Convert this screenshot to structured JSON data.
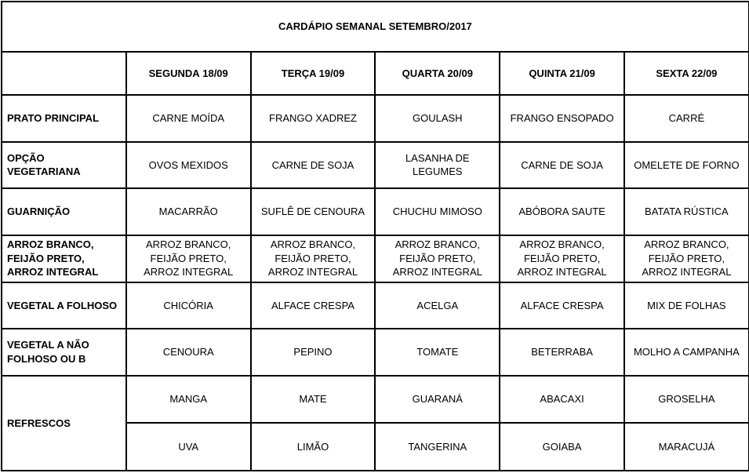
{
  "title": "CARDÁPIO SEMANAL SETEMBRO/2017",
  "table": {
    "day_headers": [
      "SEGUNDA 18/09",
      "TERÇA 19/09",
      "QUARTA 20/09",
      "QUINTA 21/09",
      "SEXTA 22/09"
    ],
    "rows": [
      {
        "label": "PRATO PRINCIPAL",
        "cells": [
          "CARNE MOÍDA",
          "FRANGO XADREZ",
          "GOULASH",
          "FRANGO ENSOPADO",
          "CARRÉ"
        ]
      },
      {
        "label": "OPÇÃO VEGETARIANA",
        "cells": [
          "OVOS MEXIDOS",
          "CARNE DE SOJA",
          "LASANHA DE LEGUMES",
          "CARNE DE SOJA",
          "OMELETE DE FORNO"
        ]
      },
      {
        "label": "GUARNIÇÃO",
        "cells": [
          "MACARRÃO",
          "SUFLÊ DE CENOURA",
          "CHUCHU MIMOSO",
          "ABÓBORA SAUTE",
          "BATATA RÚSTICA"
        ]
      },
      {
        "label": "ARROZ BRANCO, FEIJÃO PRETO, ARROZ INTEGRAL",
        "cells": [
          "ARROZ BRANCO, FEIJÃO PRETO, ARROZ INTEGRAL",
          "ARROZ BRANCO, FEIJÃO PRETO, ARROZ INTEGRAL",
          "ARROZ BRANCO, FEIJÃO PRETO, ARROZ INTEGRAL",
          "ARROZ BRANCO, FEIJÃO PRETO, ARROZ INTEGRAL",
          "ARROZ BRANCO, FEIJÃO PRETO, ARROZ INTEGRAL"
        ]
      },
      {
        "label": "VEGETAL A FOLHOSO",
        "cells": [
          "CHICÓRIA",
          "ALFACE CRESPA",
          "ACELGA",
          "ALFACE CRESPA",
          "MIX DE FOLHAS"
        ]
      },
      {
        "label": "VEGETAL A NÃO FOLHOSO OU B",
        "cells": [
          "CENOURA",
          "PEPINO",
          "TOMATE",
          "BETERRABA",
          "MOLHO A CAMPANHA"
        ]
      },
      {
        "label": "REFRESCOS",
        "cells": [
          "MANGA",
          "MATE",
          "GUARANÁ",
          "ABACAXI",
          "GROSELHA"
        ]
      },
      {
        "label": "",
        "cells": [
          "UVA",
          "LIMÃO",
          "TANGERINA",
          "GOIABA",
          "MARACUJÁ"
        ]
      }
    ]
  }
}
